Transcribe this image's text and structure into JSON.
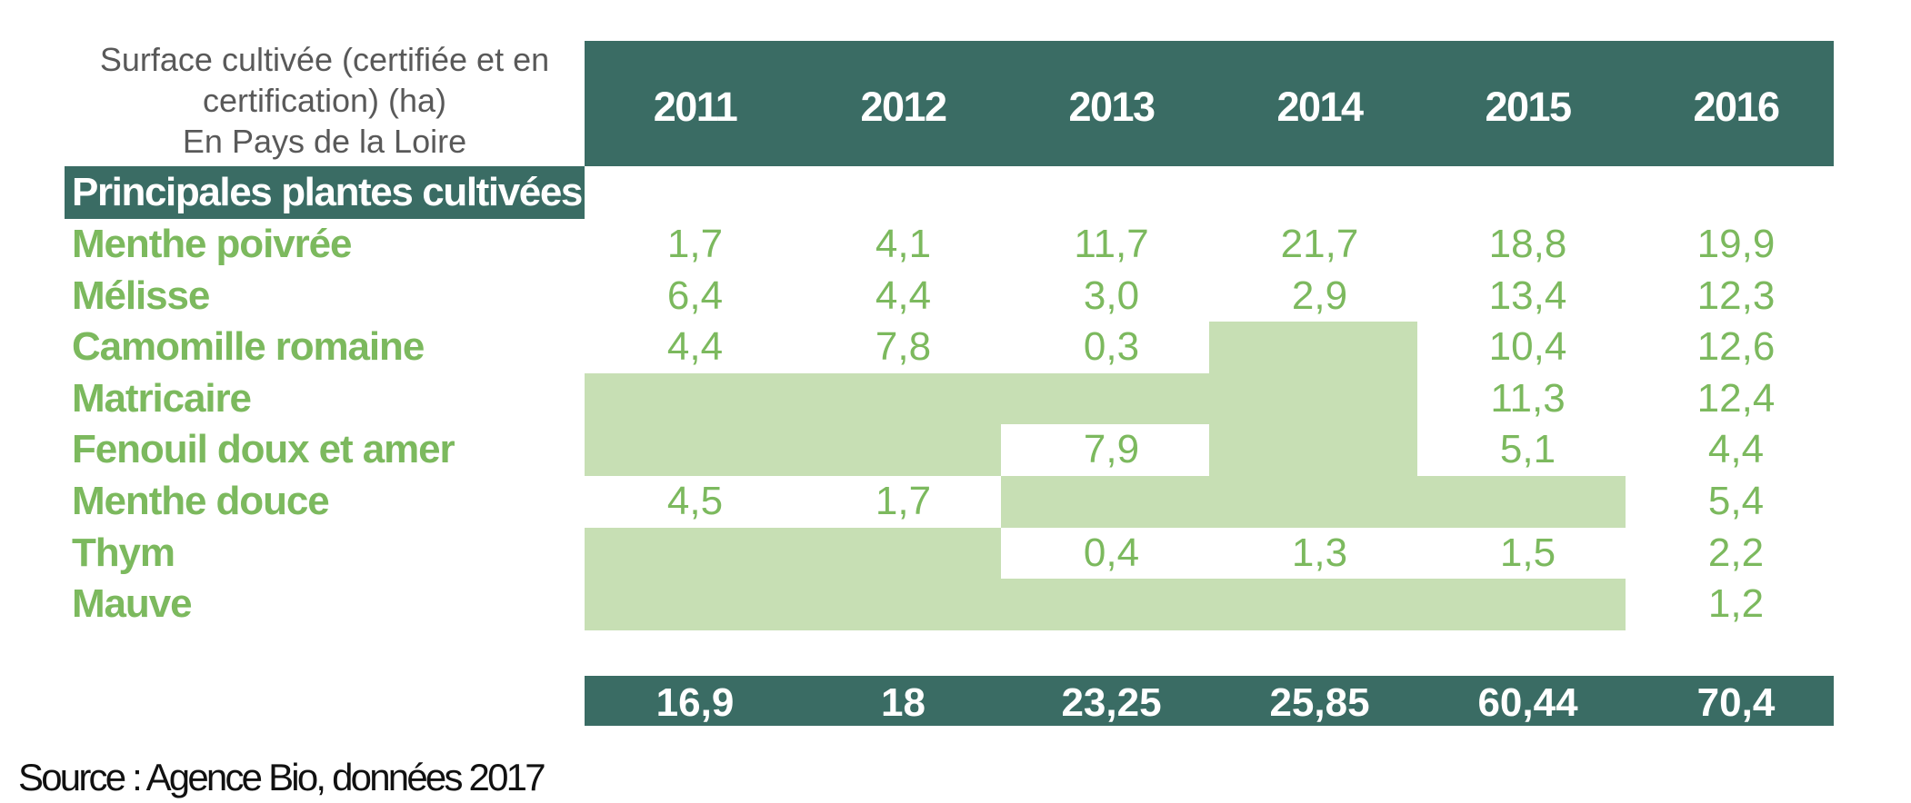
{
  "title": {
    "line1": "Surface cultivée (certifiée et en",
    "line2": "certification) (ha)",
    "line3": "En Pays de la Loire"
  },
  "columns": [
    "2011",
    "2012",
    "2013",
    "2014",
    "2015",
    "2016"
  ],
  "section_header": "Principales plantes cultivées",
  "rows": [
    {
      "label": "Menthe poivrée",
      "values": [
        "1,7",
        "4,1",
        "11,7",
        "21,7",
        "18,8",
        "19,9"
      ]
    },
    {
      "label": "Mélisse",
      "values": [
        "6,4",
        "4,4",
        "3,0",
        "2,9",
        "13,4",
        "12,3"
      ]
    },
    {
      "label": "Camomille romaine",
      "values": [
        "4,4",
        "7,8",
        "0,3",
        null,
        "10,4",
        "12,6"
      ]
    },
    {
      "label": "Matricaire",
      "values": [
        null,
        null,
        null,
        null,
        "11,3",
        "12,4"
      ]
    },
    {
      "label": "Fenouil doux et amer",
      "values": [
        null,
        null,
        "7,9",
        null,
        "5,1",
        "4,4"
      ]
    },
    {
      "label": "Menthe douce",
      "values": [
        "4,5",
        "1,7",
        null,
        null,
        null,
        "5,4"
      ]
    },
    {
      "label": "Thym",
      "values": [
        null,
        null,
        "0,4",
        "1,3",
        "1,5",
        "2,2"
      ]
    },
    {
      "label": "Mauve",
      "values": [
        null,
        null,
        null,
        null,
        null,
        "1,2"
      ]
    }
  ],
  "totals": [
    "16,9",
    "18",
    "23,25",
    "25,85",
    "60,44",
    "70,4"
  ],
  "source_note": "Source : Agence Bio, données 2017",
  "colors": {
    "header_teal": "#3a6c64",
    "empty_cell_green": "#c7dfb4",
    "text_green": "#7cb95e",
    "title_gray": "#595959"
  },
  "chart_data": {
    "type": "table",
    "title": "Surface cultivée (certifiée et en certification) (ha) En Pays de la Loire",
    "section": "Principales plantes cultivées",
    "columns": [
      "2011",
      "2012",
      "2013",
      "2014",
      "2015",
      "2016"
    ],
    "rows": [
      {
        "label": "Menthe poivrée",
        "values": [
          1.7,
          4.1,
          11.7,
          21.7,
          18.8,
          19.9
        ]
      },
      {
        "label": "Mélisse",
        "values": [
          6.4,
          4.4,
          3.0,
          2.9,
          13.4,
          12.3
        ]
      },
      {
        "label": "Camomille romaine",
        "values": [
          4.4,
          7.8,
          0.3,
          null,
          10.4,
          12.6
        ]
      },
      {
        "label": "Matricaire",
        "values": [
          null,
          null,
          null,
          null,
          11.3,
          12.4
        ]
      },
      {
        "label": "Fenouil doux et amer",
        "values": [
          null,
          null,
          7.9,
          null,
          5.1,
          4.4
        ]
      },
      {
        "label": "Menthe douce",
        "values": [
          4.5,
          1.7,
          null,
          null,
          null,
          5.4
        ]
      },
      {
        "label": "Thym",
        "values": [
          null,
          null,
          0.4,
          1.3,
          1.5,
          2.2
        ]
      },
      {
        "label": "Mauve",
        "values": [
          null,
          null,
          null,
          null,
          null,
          1.2
        ]
      }
    ],
    "totals": [
      16.9,
      18,
      23.25,
      25.85,
      60.44,
      70.4
    ],
    "source": "Source : Agence Bio, données 2017",
    "legend_position": "none",
    "grid": false
  }
}
